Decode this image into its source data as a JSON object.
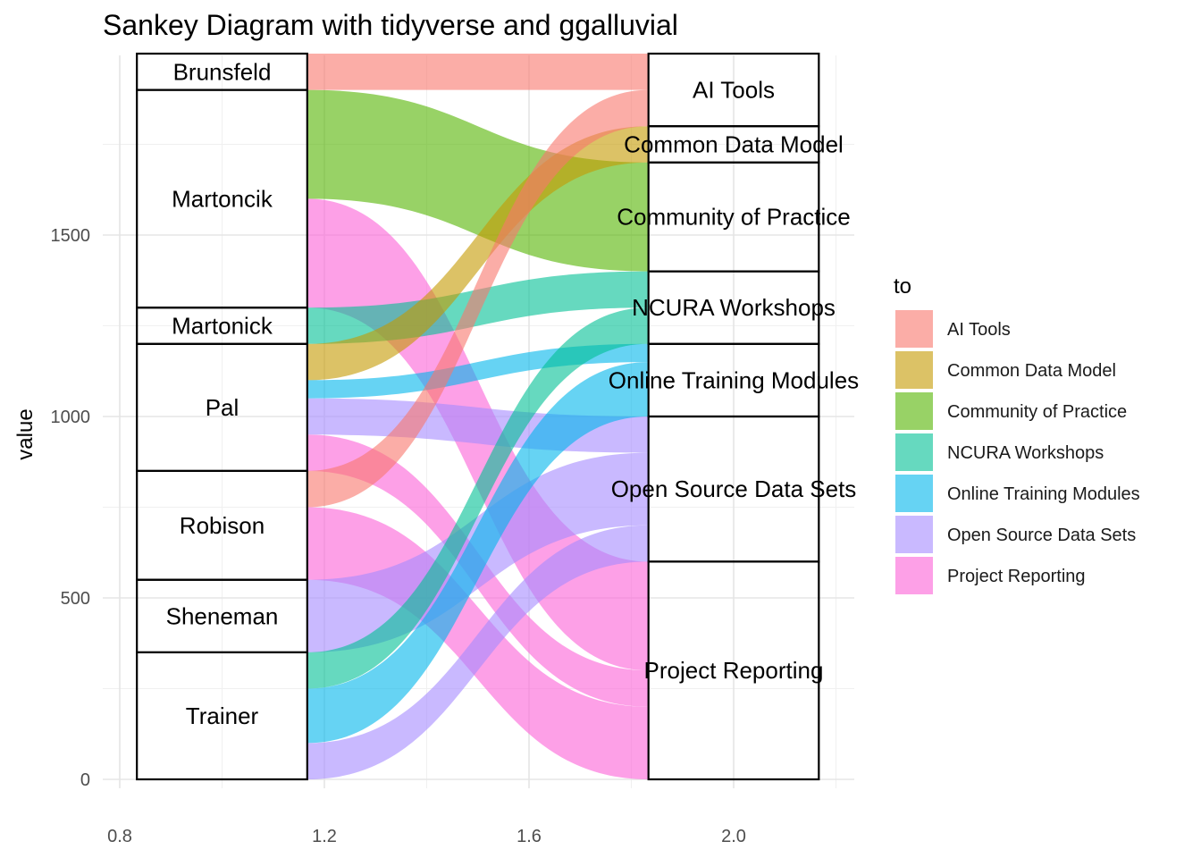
{
  "chart_data": {
    "type": "sankey",
    "title": "Sankey Diagram with tidyverse and ggalluvial",
    "xlabel": "",
    "ylabel": "value",
    "xlim": [
      0.8,
      2.2
    ],
    "ylim": [
      0,
      1900
    ],
    "x_ticks": [
      0.8,
      1.2,
      1.6,
      2.0
    ],
    "x_tick_labels": [
      "0.8",
      "1.2",
      "1.6",
      "2.0"
    ],
    "y_ticks": [
      0,
      500,
      1000,
      1500
    ],
    "y_tick_labels": [
      "0",
      "500",
      "1000",
      "1500"
    ],
    "grid": true,
    "axes": [
      1,
      2
    ],
    "stratum_width": 0.333,
    "from_strata": [
      "Brunsfeld",
      "Martoncik",
      "Martonick",
      "Pal",
      "Robison",
      "Sheneman",
      "Trainer"
    ],
    "to_strata": [
      "AI Tools",
      "Common Data Model",
      "Community of Practice",
      "NCURA Workshops",
      "Online Training Modules",
      "Open Source Data Sets",
      "Project Reporting"
    ],
    "flows": [
      {
        "from": "Brunsfeld",
        "to": "AI Tools",
        "value": 100
      },
      {
        "from": "Martoncik",
        "to": "Community of Practice",
        "value": 300
      },
      {
        "from": "Martoncik",
        "to": "Project Reporting",
        "value": 300
      },
      {
        "from": "Martonick",
        "to": "NCURA Workshops",
        "value": 100
      },
      {
        "from": "Pal",
        "to": "Common Data Model",
        "value": 100
      },
      {
        "from": "Pal",
        "to": "Open Source Data Sets",
        "value": 100
      },
      {
        "from": "Pal",
        "to": "Online Training Modules",
        "value": 50
      },
      {
        "from": "Pal",
        "to": "Project Reporting",
        "value": 100
      },
      {
        "from": "Robison",
        "to": "Project Reporting",
        "value": 200
      },
      {
        "from": "Robison",
        "to": "AI Tools",
        "value": 100
      },
      {
        "from": "Sheneman",
        "to": "Open Source Data Sets",
        "value": 200
      },
      {
        "from": "Trainer",
        "to": "NCURA Workshops",
        "value": 100
      },
      {
        "from": "Trainer",
        "to": "Online Training Modules",
        "value": 150
      },
      {
        "from": "Trainer",
        "to": "Open Source Data Sets",
        "value": 100
      }
    ],
    "legend": {
      "title": "to",
      "placement": "right",
      "entries": [
        {
          "label": "AI Tools",
          "color": "#F8766D"
        },
        {
          "label": "Common Data Model",
          "color": "#C49A00"
        },
        {
          "label": "Community of Practice",
          "color": "#53B400"
        },
        {
          "label": "NCURA Workshops",
          "color": "#00C094"
        },
        {
          "label": "Online Training Modules",
          "color": "#00B6EB"
        },
        {
          "label": "Open Source Data Sets",
          "color": "#A58AFF"
        },
        {
          "label": "Project Reporting",
          "color": "#FB61D7"
        }
      ]
    }
  }
}
